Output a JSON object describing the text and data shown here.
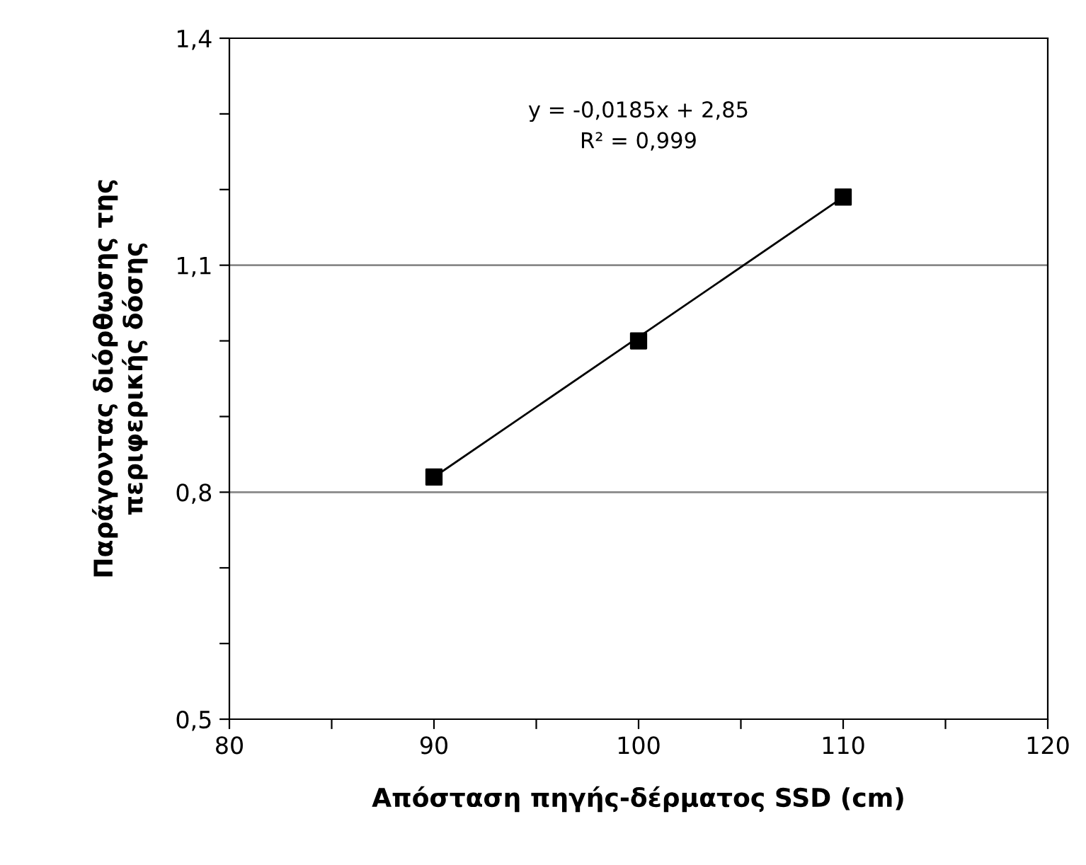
{
  "chart_data": {
    "type": "scatter",
    "xlabel": "Απόσταση πηγής-δέρματος SSD (cm)",
    "ylabel": "Παράγοντας διόρθωσης της\nπεριφερικής δόσης",
    "annotations": [
      "y = -0,0185x + 2,85\nR² = 0,999"
    ],
    "series": [
      {
        "color": "#000000",
        "marker": "square",
        "x": [
          90,
          100,
          110
        ],
        "values": [
          0.82,
          1.0,
          1.19
        ]
      },
      {
        "type": "line",
        "color": "#000000",
        "marker": "none",
        "line_style": "solid",
        "x": [
          90,
          110
        ],
        "values": [
          0.82,
          1.19
        ]
      }
    ],
    "xlim": [
      80,
      120
    ],
    "xticks": [
      80,
      {
        "value": 85,
        "label": null
      },
      90,
      {
        "value": 95,
        "label": null
      },
      100,
      {
        "value": 105,
        "label": null
      },
      110,
      {
        "value": 115,
        "label": null
      },
      120
    ],
    "ylim": [
      0.5,
      1.4
    ],
    "yticks": [
      {
        "value": 0.5,
        "label": "0,5"
      },
      {
        "value": 0.6,
        "label": null
      },
      {
        "value": 0.7,
        "label": null
      },
      {
        "value": 0.8,
        "label": "0,8"
      },
      {
        "value": 0.9,
        "label": null
      },
      {
        "value": 1.0,
        "label": null
      },
      {
        "value": 1.1,
        "label": "1,1"
      },
      {
        "value": 1.2,
        "label": null
      },
      {
        "value": 1.3,
        "label": null
      },
      {
        "value": 1.4,
        "label": "1,4"
      }
    ],
    "grid": "y",
    "legend": false
  }
}
